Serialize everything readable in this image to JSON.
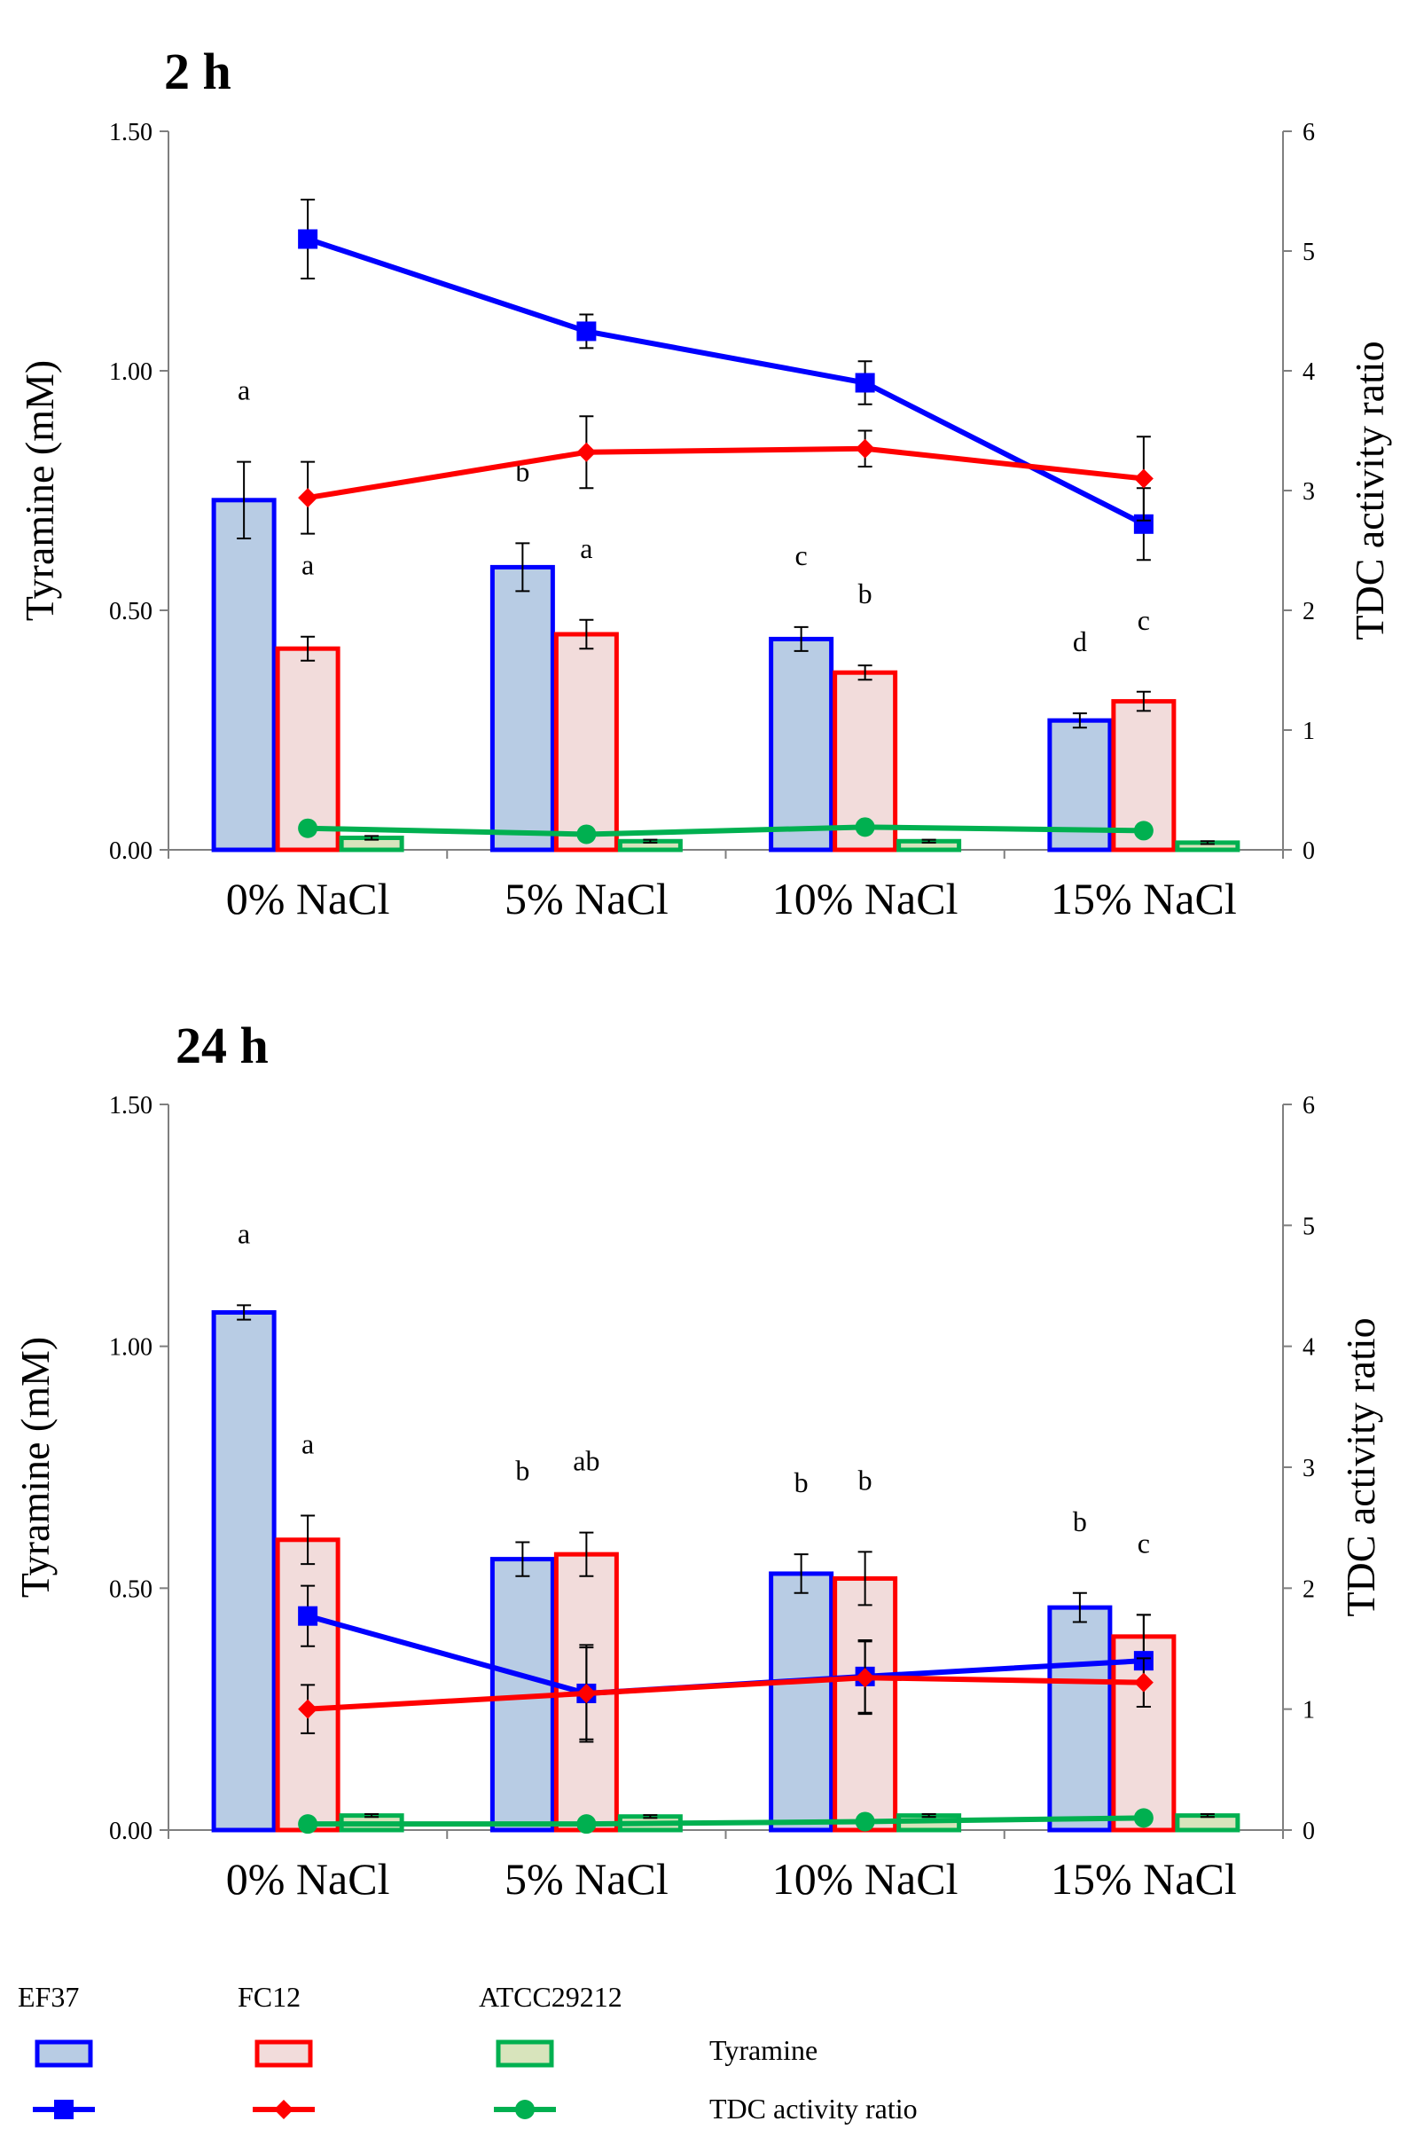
{
  "legend": {
    "strains": [
      "EF37",
      "FC12",
      "ATCC29212"
    ],
    "rows": [
      "Tyramine",
      "TDC activity ratio"
    ]
  },
  "colors": {
    "EF37_stroke": "#0000ff",
    "EF37_fill": "#b8cce4",
    "FC12_stroke": "#ff0000",
    "FC12_fill": "#f2dcdb",
    "ATCC29212_stroke": "#00b050",
    "ATCC29212_fill": "#d8e4bc",
    "axis": "#7f7f7f",
    "error": "#000000"
  },
  "chart_data": [
    {
      "type": "bar",
      "title": "2 h",
      "categories": [
        "0% NaCl",
        "5% NaCl",
        "10% NaCl",
        "15% NaCl"
      ],
      "ylabel": "Tyramine (mM)",
      "y2label": "TDC activity ratio",
      "ylim": [
        0,
        1.5
      ],
      "yticks": [
        "0.00",
        "0.50",
        "1.00",
        "1.50"
      ],
      "y2lim": [
        0,
        6
      ],
      "y2ticks": [
        "0",
        "1",
        "2",
        "3",
        "4",
        "5",
        "6"
      ],
      "series": [
        {
          "name": "EF37",
          "kind": "bar",
          "values": [
            0.73,
            0.59,
            0.44,
            0.27
          ],
          "errors": [
            0.08,
            0.05,
            0.025,
            0.015
          ],
          "letters": [
            "a",
            "b",
            "c",
            "d"
          ]
        },
        {
          "name": "FC12",
          "kind": "bar",
          "values": [
            0.42,
            0.45,
            0.37,
            0.31
          ],
          "errors": [
            0.025,
            0.03,
            0.015,
            0.02
          ],
          "letters": [
            "a",
            "a",
            "b",
            "c"
          ]
        },
        {
          "name": "ATCC29212",
          "kind": "bar",
          "values": [
            0.025,
            0.018,
            0.018,
            0.015
          ],
          "errors": [
            0.004,
            0.003,
            0.003,
            0.003
          ],
          "letters": [
            "",
            "",
            "",
            ""
          ]
        },
        {
          "name": "EF37",
          "kind": "line",
          "marker": "square",
          "axis": "y2",
          "values": [
            5.1,
            4.33,
            3.9,
            2.72
          ],
          "errors": [
            0.33,
            0.14,
            0.18,
            0.3
          ]
        },
        {
          "name": "FC12",
          "kind": "line",
          "marker": "diamond",
          "axis": "y2",
          "values": [
            2.94,
            3.32,
            3.35,
            3.1
          ],
          "errors": [
            0.3,
            0.3,
            0.15,
            0.35
          ]
        },
        {
          "name": "ATCC29212",
          "kind": "line",
          "marker": "circle",
          "axis": "y2",
          "values": [
            0.18,
            0.13,
            0.19,
            0.16
          ],
          "errors": [
            0.05,
            0.02,
            0.02,
            0.02
          ]
        }
      ]
    },
    {
      "type": "bar",
      "title": "24 h",
      "categories": [
        "0% NaCl",
        "5% NaCl",
        "10% NaCl",
        "15% NaCl"
      ],
      "ylabel": "Tyramine (mM)",
      "y2label": "TDC activity ratio",
      "ylim": [
        0,
        1.5
      ],
      "yticks": [
        "0.00",
        "0.50",
        "1.00",
        "1.50"
      ],
      "y2lim": [
        0,
        6
      ],
      "y2ticks": [
        "0",
        "1",
        "2",
        "3",
        "4",
        "5",
        "6"
      ],
      "series": [
        {
          "name": "EF37",
          "kind": "bar",
          "values": [
            1.07,
            0.56,
            0.53,
            0.46
          ],
          "errors": [
            0.015,
            0.035,
            0.04,
            0.03
          ],
          "letters": [
            "a",
            "b",
            "b",
            "b"
          ]
        },
        {
          "name": "FC12",
          "kind": "bar",
          "values": [
            0.6,
            0.57,
            0.52,
            0.4
          ],
          "errors": [
            0.05,
            0.045,
            0.055,
            0.045
          ],
          "letters": [
            "a",
            "ab",
            "b",
            "c"
          ]
        },
        {
          "name": "ATCC29212",
          "kind": "bar",
          "values": [
            0.03,
            0.028,
            0.03,
            0.03
          ],
          "errors": [
            0.003,
            0.003,
            0.003,
            0.003
          ],
          "letters": [
            "",
            "",
            "",
            ""
          ]
        },
        {
          "name": "EF37",
          "kind": "line",
          "marker": "square",
          "axis": "y2",
          "values": [
            1.77,
            1.13,
            1.27,
            1.4
          ],
          "errors": [
            0.25,
            0.38,
            0.3,
            0.38
          ]
        },
        {
          "name": "FC12",
          "kind": "line",
          "marker": "diamond",
          "axis": "y2",
          "values": [
            1.0,
            1.13,
            1.26,
            1.22
          ],
          "errors": [
            0.2,
            0.4,
            0.3,
            0.2
          ]
        },
        {
          "name": "ATCC29212",
          "kind": "line",
          "marker": "circle",
          "axis": "y2",
          "values": [
            0.05,
            0.05,
            0.07,
            0.1
          ],
          "errors": [
            0.01,
            0.01,
            0.01,
            0.01
          ]
        }
      ]
    }
  ]
}
